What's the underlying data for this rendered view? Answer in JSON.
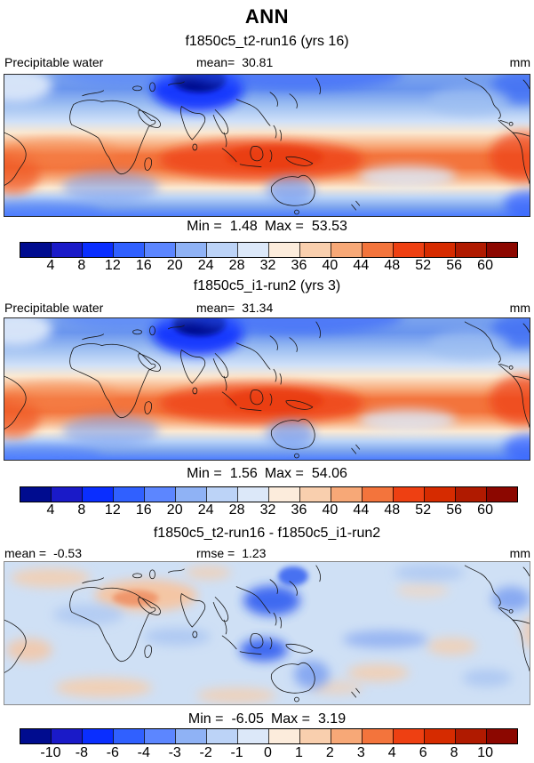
{
  "page": {
    "title": "ANN"
  },
  "panels": [
    {
      "subtitle": "f1850c5_t2-run16 (yrs 16)",
      "header": {
        "left": "Precipitable water",
        "center_label": "mean=",
        "center_value": "30.81",
        "right": "mm"
      },
      "stats": {
        "min_label": "Min =",
        "min": "1.48",
        "max_label": "Max =",
        "max": "53.53"
      },
      "colorbar": "absolute"
    },
    {
      "subtitle": "f1850c5_i1-run2 (yrs 3)",
      "header": {
        "left": "Precipitable water",
        "center_label": "mean=",
        "center_value": "31.34",
        "right": "mm"
      },
      "stats": {
        "min_label": "Min =",
        "min": "1.56",
        "max_label": "Max =",
        "max": "54.06"
      },
      "colorbar": "absolute"
    },
    {
      "subtitle": "f1850c5_t2-run16 - f1850c5_i1-run2",
      "header": {
        "left_label": "mean =",
        "left_value": "-0.53",
        "center_label": "rmse =",
        "center_value": "1.23",
        "right": "mm"
      },
      "stats": {
        "min_label": "Min =",
        "min": "-6.05",
        "max_label": "Max =",
        "max": "3.19"
      },
      "colorbar": "difference"
    }
  ],
  "colorbars": {
    "absolute": {
      "ticks": [
        "4",
        "8",
        "12",
        "16",
        "20",
        "24",
        "28",
        "32",
        "36",
        "40",
        "44",
        "48",
        "52",
        "56",
        "60"
      ],
      "colors": [
        "#000c8f",
        "#1a1ac8",
        "#0a2eff",
        "#3060ff",
        "#5c86ff",
        "#8fb2f5",
        "#bcd3f7",
        "#dce8f9",
        "#fcecdc",
        "#f9cfae",
        "#f7a877",
        "#f3743c",
        "#ee4012",
        "#d62b00",
        "#b01a00",
        "#8c0700"
      ]
    },
    "difference": {
      "ticks": [
        "-10",
        "-8",
        "-6",
        "-4",
        "-3",
        "-2",
        "-1",
        "0",
        "1",
        "2",
        "3",
        "4",
        "6",
        "8",
        "10"
      ],
      "colors": [
        "#000c8f",
        "#1a1ac8",
        "#0a2eff",
        "#3060ff",
        "#5c86ff",
        "#8fb2f5",
        "#bcd3f7",
        "#dce8f9",
        "#fcecdc",
        "#f9cfae",
        "#f7a877",
        "#f3743c",
        "#ee4012",
        "#d62b00",
        "#b01a00",
        "#8c0700"
      ]
    }
  },
  "chart_data": [
    {
      "type": "heatmap",
      "title": "f1850c5_t2-run16 (yrs 16)",
      "variable": "Precipitable water",
      "units": "mm",
      "projection": "global latitude-longitude map",
      "mean": 30.81,
      "min": 1.48,
      "max": 53.53,
      "levels": [
        4,
        8,
        12,
        16,
        20,
        24,
        28,
        32,
        36,
        40,
        44,
        48,
        52,
        56,
        60
      ],
      "palette": [
        "#000c8f",
        "#1a1ac8",
        "#0a2eff",
        "#3060ff",
        "#5c86ff",
        "#8fb2f5",
        "#bcd3f7",
        "#dce8f9",
        "#fcecdc",
        "#f9cfae",
        "#f7a877",
        "#f3743c",
        "#ee4012",
        "#d62b00",
        "#b01a00",
        "#8c0700"
      ],
      "pattern": "high values (orange/red ~40-55 mm) along tropics peaking over Indonesia/west Pacific; low values (blue <20 mm) at high latitudes and over Tibet"
    },
    {
      "type": "heatmap",
      "title": "f1850c5_i1-run2 (yrs 3)",
      "variable": "Precipitable water",
      "units": "mm",
      "projection": "global latitude-longitude map",
      "mean": 31.34,
      "min": 1.56,
      "max": 54.06,
      "levels": [
        4,
        8,
        12,
        16,
        20,
        24,
        28,
        32,
        36,
        40,
        44,
        48,
        52,
        56,
        60
      ],
      "palette": [
        "#000c8f",
        "#1a1ac8",
        "#0a2eff",
        "#3060ff",
        "#5c86ff",
        "#8fb2f5",
        "#bcd3f7",
        "#dce8f9",
        "#fcecdc",
        "#f9cfae",
        "#f7a877",
        "#f3743c",
        "#ee4012",
        "#d62b00",
        "#b01a00",
        "#8c0700"
      ],
      "pattern": "same tropical maximum / polar minimum structure as run16"
    },
    {
      "type": "heatmap",
      "title": "f1850c5_t2-run16 - f1850c5_i1-run2",
      "variable": "Precipitable water difference",
      "units": "mm",
      "projection": "global latitude-longitude map",
      "mean": -0.53,
      "rmse": 1.23,
      "min": -6.05,
      "max": 3.19,
      "levels": [
        -10,
        -8,
        -6,
        -4,
        -3,
        -2,
        -1,
        0,
        1,
        2,
        3,
        4,
        6,
        8,
        10
      ],
      "palette": [
        "#000c8f",
        "#1a1ac8",
        "#0a2eff",
        "#3060ff",
        "#5c86ff",
        "#8fb2f5",
        "#bcd3f7",
        "#dce8f9",
        "#fcecdc",
        "#f9cfae",
        "#f7a877",
        "#f3743c",
        "#ee4012",
        "#d62b00",
        "#b01a00",
        "#8c0700"
      ],
      "pattern": "mostly weak negative (pale blue) differences; strongest negative blobs over East Asia, Indonesia and eastern Australia; positive (salmon) patch over Sahara/Middle East"
    }
  ]
}
